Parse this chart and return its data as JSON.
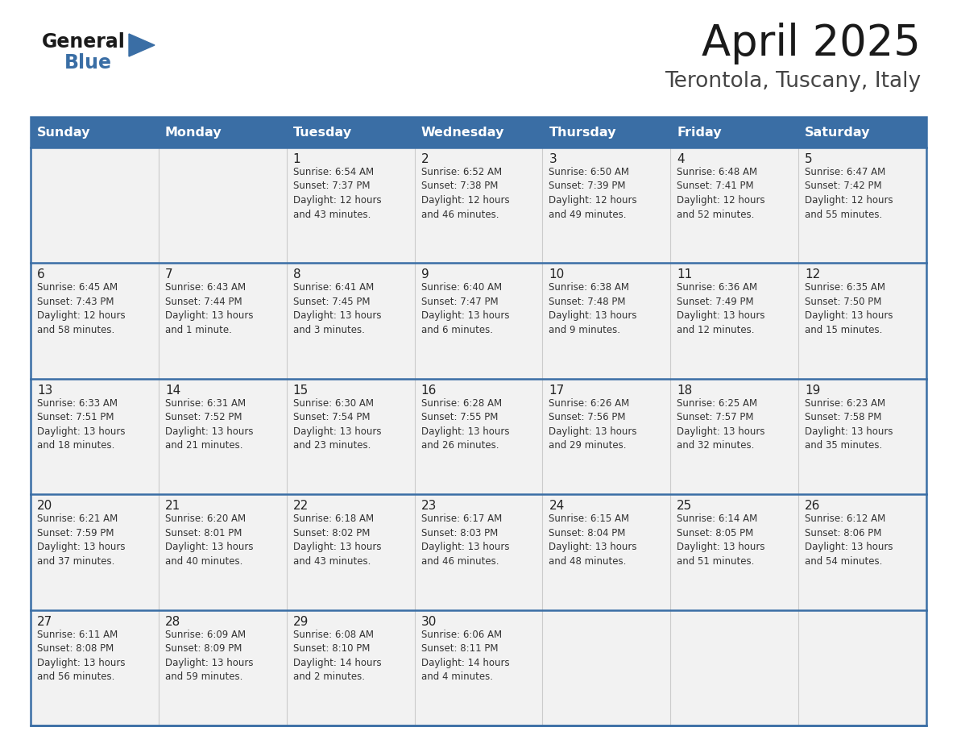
{
  "title": "April 2025",
  "subtitle": "Terontola, Tuscany, Italy",
  "header_bg": "#3a6ea5",
  "header_text": "#ffffff",
  "row_bg": "#f2f2f2",
  "cell_border_color": "#3a6ea5",
  "inner_border_color": "#aaaaaa",
  "day_text_color": "#222222",
  "content_text_color": "#333333",
  "days_of_week": [
    "Sunday",
    "Monday",
    "Tuesday",
    "Wednesday",
    "Thursday",
    "Friday",
    "Saturday"
  ],
  "weeks": [
    [
      {
        "day": "",
        "content": ""
      },
      {
        "day": "",
        "content": ""
      },
      {
        "day": "1",
        "content": "Sunrise: 6:54 AM\nSunset: 7:37 PM\nDaylight: 12 hours\nand 43 minutes."
      },
      {
        "day": "2",
        "content": "Sunrise: 6:52 AM\nSunset: 7:38 PM\nDaylight: 12 hours\nand 46 minutes."
      },
      {
        "day": "3",
        "content": "Sunrise: 6:50 AM\nSunset: 7:39 PM\nDaylight: 12 hours\nand 49 minutes."
      },
      {
        "day": "4",
        "content": "Sunrise: 6:48 AM\nSunset: 7:41 PM\nDaylight: 12 hours\nand 52 minutes."
      },
      {
        "day": "5",
        "content": "Sunrise: 6:47 AM\nSunset: 7:42 PM\nDaylight: 12 hours\nand 55 minutes."
      }
    ],
    [
      {
        "day": "6",
        "content": "Sunrise: 6:45 AM\nSunset: 7:43 PM\nDaylight: 12 hours\nand 58 minutes."
      },
      {
        "day": "7",
        "content": "Sunrise: 6:43 AM\nSunset: 7:44 PM\nDaylight: 13 hours\nand 1 minute."
      },
      {
        "day": "8",
        "content": "Sunrise: 6:41 AM\nSunset: 7:45 PM\nDaylight: 13 hours\nand 3 minutes."
      },
      {
        "day": "9",
        "content": "Sunrise: 6:40 AM\nSunset: 7:47 PM\nDaylight: 13 hours\nand 6 minutes."
      },
      {
        "day": "10",
        "content": "Sunrise: 6:38 AM\nSunset: 7:48 PM\nDaylight: 13 hours\nand 9 minutes."
      },
      {
        "day": "11",
        "content": "Sunrise: 6:36 AM\nSunset: 7:49 PM\nDaylight: 13 hours\nand 12 minutes."
      },
      {
        "day": "12",
        "content": "Sunrise: 6:35 AM\nSunset: 7:50 PM\nDaylight: 13 hours\nand 15 minutes."
      }
    ],
    [
      {
        "day": "13",
        "content": "Sunrise: 6:33 AM\nSunset: 7:51 PM\nDaylight: 13 hours\nand 18 minutes."
      },
      {
        "day": "14",
        "content": "Sunrise: 6:31 AM\nSunset: 7:52 PM\nDaylight: 13 hours\nand 21 minutes."
      },
      {
        "day": "15",
        "content": "Sunrise: 6:30 AM\nSunset: 7:54 PM\nDaylight: 13 hours\nand 23 minutes."
      },
      {
        "day": "16",
        "content": "Sunrise: 6:28 AM\nSunset: 7:55 PM\nDaylight: 13 hours\nand 26 minutes."
      },
      {
        "day": "17",
        "content": "Sunrise: 6:26 AM\nSunset: 7:56 PM\nDaylight: 13 hours\nand 29 minutes."
      },
      {
        "day": "18",
        "content": "Sunrise: 6:25 AM\nSunset: 7:57 PM\nDaylight: 13 hours\nand 32 minutes."
      },
      {
        "day": "19",
        "content": "Sunrise: 6:23 AM\nSunset: 7:58 PM\nDaylight: 13 hours\nand 35 minutes."
      }
    ],
    [
      {
        "day": "20",
        "content": "Sunrise: 6:21 AM\nSunset: 7:59 PM\nDaylight: 13 hours\nand 37 minutes."
      },
      {
        "day": "21",
        "content": "Sunrise: 6:20 AM\nSunset: 8:01 PM\nDaylight: 13 hours\nand 40 minutes."
      },
      {
        "day": "22",
        "content": "Sunrise: 6:18 AM\nSunset: 8:02 PM\nDaylight: 13 hours\nand 43 minutes."
      },
      {
        "day": "23",
        "content": "Sunrise: 6:17 AM\nSunset: 8:03 PM\nDaylight: 13 hours\nand 46 minutes."
      },
      {
        "day": "24",
        "content": "Sunrise: 6:15 AM\nSunset: 8:04 PM\nDaylight: 13 hours\nand 48 minutes."
      },
      {
        "day": "25",
        "content": "Sunrise: 6:14 AM\nSunset: 8:05 PM\nDaylight: 13 hours\nand 51 minutes."
      },
      {
        "day": "26",
        "content": "Sunrise: 6:12 AM\nSunset: 8:06 PM\nDaylight: 13 hours\nand 54 minutes."
      }
    ],
    [
      {
        "day": "27",
        "content": "Sunrise: 6:11 AM\nSunset: 8:08 PM\nDaylight: 13 hours\nand 56 minutes."
      },
      {
        "day": "28",
        "content": "Sunrise: 6:09 AM\nSunset: 8:09 PM\nDaylight: 13 hours\nand 59 minutes."
      },
      {
        "day": "29",
        "content": "Sunrise: 6:08 AM\nSunset: 8:10 PM\nDaylight: 14 hours\nand 2 minutes."
      },
      {
        "day": "30",
        "content": "Sunrise: 6:06 AM\nSunset: 8:11 PM\nDaylight: 14 hours\nand 4 minutes."
      },
      {
        "day": "",
        "content": ""
      },
      {
        "day": "",
        "content": ""
      },
      {
        "day": "",
        "content": ""
      }
    ]
  ],
  "logo_general_color": "#1a1a1a",
  "logo_blue_color": "#3a6ea5",
  "logo_triangle_color": "#3a6ea5",
  "title_color": "#1a1a1a",
  "subtitle_color": "#444444",
  "title_fontsize": 38,
  "subtitle_fontsize": 19,
  "header_fontsize": 11.5,
  "day_num_fontsize": 11,
  "content_fontsize": 8.5
}
